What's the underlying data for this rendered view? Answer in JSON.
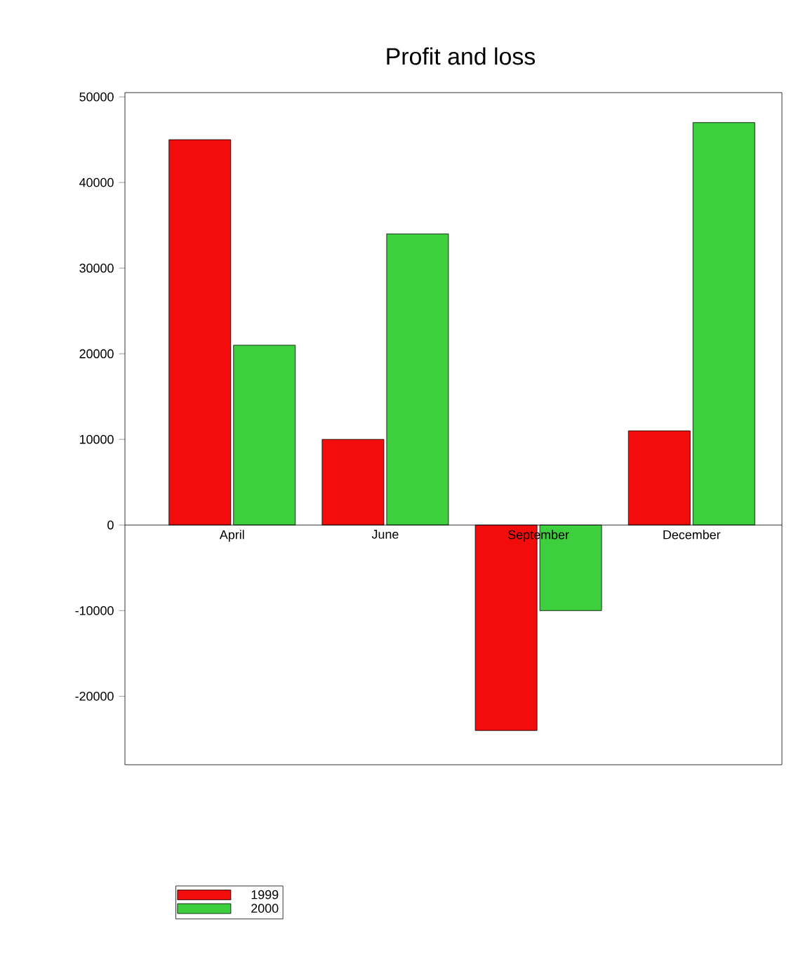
{
  "chart_data": {
    "type": "bar",
    "title": "Profit and loss",
    "categories": [
      "April",
      "June",
      "September",
      "December"
    ],
    "series": [
      {
        "name": "1999",
        "color": "#f20c0c",
        "values": [
          45000,
          10000,
          -24000,
          11000
        ]
      },
      {
        "name": "2000",
        "color": "#3ecf3e",
        "values": [
          21000,
          34000,
          -10000,
          47000
        ]
      }
    ],
    "ylim": [
      -28000,
      50500
    ],
    "yticks": [
      -20000,
      -10000,
      0,
      10000,
      20000,
      30000,
      40000,
      50000
    ],
    "grid": false,
    "legend": "bottom left"
  }
}
